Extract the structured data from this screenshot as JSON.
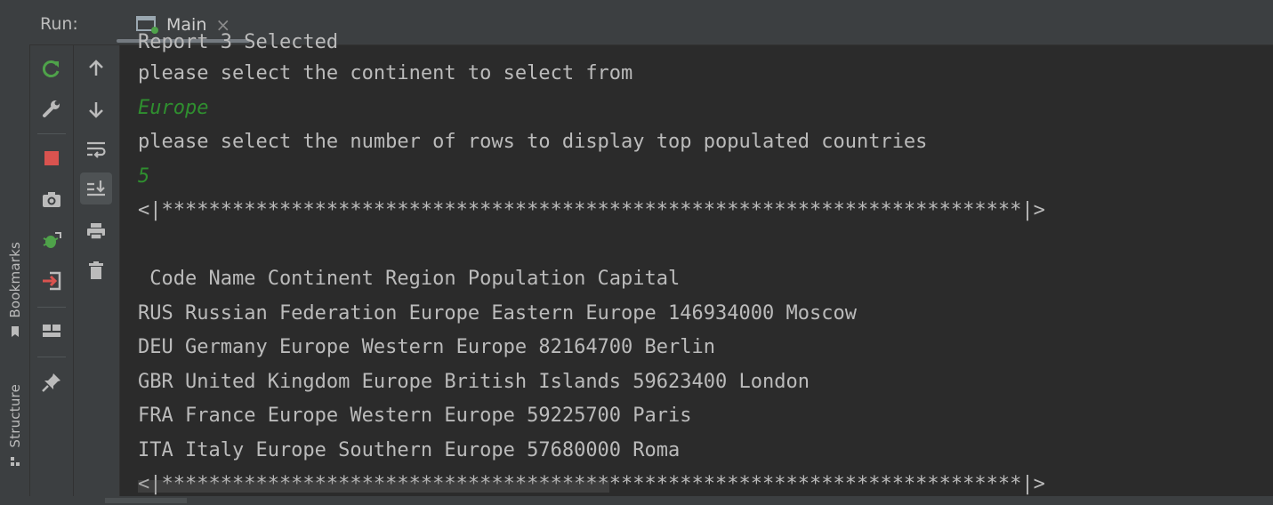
{
  "header": {
    "run_label": "Run:",
    "tab_label": "Main",
    "close_glyph": "×"
  },
  "side_tabs": {
    "bookmarks": "Bookmarks",
    "structure": "Structure"
  },
  "toolbar": {
    "left_icons": [
      "rerun-icon",
      "wrench-icon",
      "stop-icon",
      "camera-icon",
      "debug-restart-icon",
      "exit-icon",
      "layout-icon",
      "pin-icon"
    ],
    "right_icons": [
      "up-arrow-icon",
      "down-arrow-icon",
      "soft-wrap-icon",
      "scroll-to-end-icon",
      "print-icon",
      "trash-icon"
    ]
  },
  "console": {
    "lines": [
      {
        "text": "Report 3 Selected",
        "kind": "output"
      },
      {
        "text": "please select the continent to select from",
        "kind": "output"
      },
      {
        "text": "Europe",
        "kind": "input"
      },
      {
        "text": "please select the number of rows to display top populated countries",
        "kind": "output"
      },
      {
        "text": "5",
        "kind": "input"
      },
      {
        "text": "<|*************************************************************************|>",
        "kind": "output"
      },
      {
        "text": "",
        "kind": "output"
      },
      {
        "text": " Code Name Continent Region Population Capital",
        "kind": "output"
      },
      {
        "text": "RUS Russian Federation Europe Eastern Europe 146934000 Moscow",
        "kind": "output"
      },
      {
        "text": "DEU Germany Europe Western Europe 82164700 Berlin",
        "kind": "output"
      },
      {
        "text": "GBR United Kingdom Europe British Islands 59623400 London",
        "kind": "output"
      },
      {
        "text": "FRA France Europe Western Europe 59225700 Paris",
        "kind": "output"
      },
      {
        "text": "ITA Italy Europe Southern Europe 57680000 Roma",
        "kind": "output"
      },
      {
        "text": "<|*************************************************************************|>",
        "kind": "output"
      }
    ]
  },
  "colors": {
    "background": "#2b2b2b",
    "panel": "#3c3f41",
    "text": "#bbbbbb",
    "input_text": "#2f8f2f",
    "run_green": "#4fa24a",
    "stop_red": "#d9534f"
  }
}
